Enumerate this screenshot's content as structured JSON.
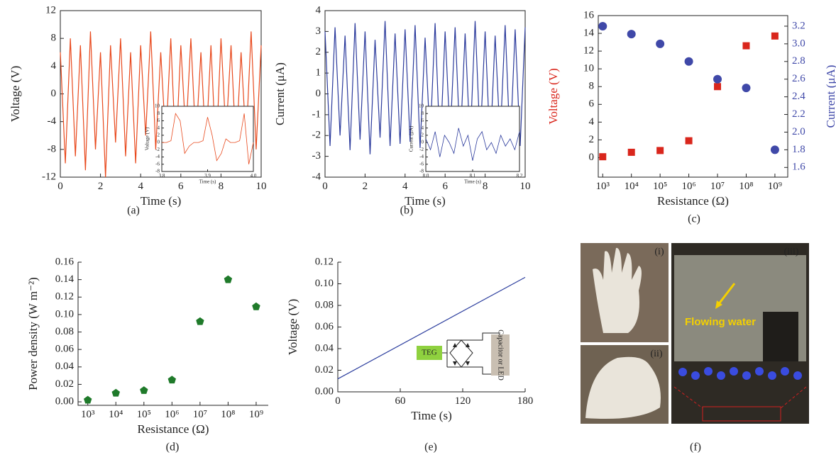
{
  "chart_data": [
    {
      "type": "line",
      "label": "(a)",
      "xlabel": "Time (s)",
      "ylabel": "Voltage (V)",
      "xlim": [
        0,
        10
      ],
      "ylim": [
        -12,
        12
      ],
      "xticks": [
        0,
        2,
        4,
        6,
        8,
        10
      ],
      "yticks": [
        -12,
        -8,
        -4,
        0,
        4,
        8,
        12
      ],
      "x": [
        0,
        0.25,
        0.5,
        0.75,
        1,
        1.25,
        1.5,
        1.75,
        2,
        2.25,
        2.5,
        2.75,
        3,
        3.25,
        3.5,
        3.75,
        4,
        4.25,
        4.5,
        4.75,
        5,
        5.25,
        5.5,
        5.75,
        6,
        6.25,
        6.5,
        6.75,
        7,
        7.25,
        7.5,
        7.75,
        8,
        8.25,
        8.5,
        8.75,
        9,
        9.25,
        9.5,
        9.75,
        10
      ],
      "series": [
        {
          "color": "#e8491d",
          "values": [
            6,
            -10,
            8,
            -9,
            7,
            -11,
            9,
            -8,
            6,
            -12,
            7,
            -7,
            8,
            -9,
            6,
            -10,
            7,
            -6,
            9,
            -8,
            6,
            -7,
            8,
            -9,
            7,
            -6,
            8,
            -7,
            6,
            -8,
            7,
            -9,
            8,
            -6,
            7,
            -8,
            6,
            -7,
            9,
            -8,
            7
          ]
        }
      ],
      "inset": {
        "type": "line",
        "xlabel": "Time (s)",
        "ylabel": "Voltage (V)",
        "xlim": [
          3.8,
          4.0
        ],
        "ylim": [
          -8,
          10
        ],
        "xticks": [
          3.8,
          3.9,
          {
            "value": 4,
            "label": "4.0"
          }
        ],
        "yticks": [
          -8,
          -6,
          -4,
          -2,
          0,
          2,
          4,
          6,
          8,
          10
        ],
        "x": [
          3.8,
          3.81,
          3.82,
          3.83,
          3.84,
          3.85,
          3.86,
          3.87,
          3.88,
          3.89,
          3.9,
          3.91,
          3.92,
          3.93,
          3.94,
          3.95,
          3.96,
          3.97,
          3.98,
          3.99,
          4.0
        ],
        "series": [
          {
            "color": "#e8491d",
            "values": [
              0,
              0,
              0.5,
              8,
              6,
              -3,
              -1,
              0,
              0,
              0.5,
              7,
              2,
              -5,
              -3,
              1,
              0,
              0,
              0.5,
              8,
              -6,
              0
            ]
          }
        ]
      }
    },
    {
      "type": "line",
      "label": "(b)",
      "xlabel": "Time (s)",
      "ylabel": "Current (μA)",
      "xlim": [
        0,
        10
      ],
      "ylim": [
        -4,
        4
      ],
      "xticks": [
        0,
        2,
        4,
        6,
        8,
        10
      ],
      "yticks": [
        -4,
        -3,
        -2,
        -1,
        0,
        1,
        2,
        3,
        4
      ],
      "x": [
        0,
        0.25,
        0.5,
        0.75,
        1,
        1.25,
        1.5,
        1.75,
        2,
        2.25,
        2.5,
        2.75,
        3,
        3.25,
        3.5,
        3.75,
        4,
        4.25,
        4.5,
        4.75,
        5,
        5.25,
        5.5,
        5.75,
        6,
        6.25,
        6.5,
        6.75,
        7,
        7.25,
        7.5,
        7.75,
        8,
        8.25,
        8.5,
        8.75,
        9,
        9.25,
        9.5,
        9.75,
        10
      ],
      "series": [
        {
          "color": "#2b3a9c",
          "values": [
            3,
            -2.5,
            3.2,
            -2,
            2.8,
            -2.7,
            3.4,
            -2.2,
            3,
            -2.9,
            2.6,
            -2.1,
            3.5,
            -2.5,
            2.9,
            -2.4,
            3.1,
            -2.3,
            3.3,
            -2.6,
            2.7,
            -2.2,
            3.4,
            -2.8,
            3,
            -2.1,
            3.2,
            -2.5,
            2.9,
            -2.4,
            3.5,
            -2.3,
            3,
            -2.7,
            2.8,
            -2.2,
            3.3,
            -2.6,
            3.1,
            -2.5,
            3.2
          ]
        }
      ],
      "inset": {
        "type": "line",
        "xlabel": "Time (s)",
        "ylabel": "Current (μA)",
        "xlim": [
          8.0,
          8.2
        ],
        "ylim": [
          -8,
          10
        ],
        "xticks": [
          {
            "value": 8,
            "label": "8.0"
          },
          8.1,
          8.2
        ],
        "yticks": [
          -8,
          -6,
          -4,
          -2,
          0,
          2,
          4,
          6,
          8,
          10
        ],
        "x": [
          8,
          8.01,
          8.02,
          8.03,
          8.04,
          8.05,
          8.06,
          8.07,
          8.08,
          8.09,
          8.1,
          8.11,
          8.12,
          8.13,
          8.14,
          8.15,
          8.16,
          8.17,
          8.18,
          8.19,
          8.2
        ],
        "series": [
          {
            "color": "#2b3a9c",
            "values": [
              1,
              -2,
              3,
              -4,
              2,
              0,
              -3,
              4,
              -1,
              2,
              -5,
              1,
              3,
              -2,
              0,
              -3,
              2,
              -1,
              1,
              -2,
              3
            ]
          }
        ]
      }
    },
    {
      "type": "scatter",
      "label": "(c)",
      "xlabel": "Resistance (Ω)",
      "ylabel": "Voltage (V)",
      "y2label": "Current (μA)",
      "log_x": true,
      "xlim": [
        700,
        2800000000
      ],
      "ylim": [
        -2.2,
        16
      ],
      "y2lim": [
        1.49,
        3.32
      ],
      "xticks": [
        {
          "value": 1000,
          "label": "10³"
        },
        {
          "value": 10000,
          "label": "10⁴"
        },
        {
          "value": 100000,
          "label": "10⁵"
        },
        {
          "value": 1000000,
          "label": "10⁶"
        },
        {
          "value": 10000000,
          "label": "10⁷"
        },
        {
          "value": 100000000,
          "label": "10⁸"
        },
        {
          "value": 1000000000,
          "label": "10⁹"
        }
      ],
      "yticks": [
        0,
        2,
        4,
        6,
        8,
        10,
        12,
        14,
        16
      ],
      "y2ticks": [
        1.6,
        1.8,
        {
          "value": 2,
          "label": "2.0"
        },
        2.2,
        2.4,
        2.6,
        2.8,
        {
          "value": 3,
          "label": "3.0"
        },
        3.2
      ],
      "x": [
        1000,
        10000,
        100000,
        1000000,
        10000000,
        100000000,
        1000000000
      ],
      "series": [
        {
          "color": "#d9261c",
          "marker": "square",
          "values": [
            0.1,
            0.6,
            0.8,
            1.9,
            8,
            12.6,
            13.7
          ]
        },
        {
          "color": "#3f48a8",
          "marker": "circle",
          "axis": "y2",
          "values": [
            3.2,
            3.11,
            3.0,
            2.8,
            2.6,
            2.5,
            1.8
          ]
        }
      ]
    },
    {
      "type": "scatter",
      "label": "(d)",
      "xlabel": "Resistance (Ω)",
      "ylabel": "Power density (W m⁻²)",
      "log_x": true,
      "xlim": [
        450,
        2700000000
      ],
      "ylim": [
        -0.004,
        0.16
      ],
      "xticks": [
        {
          "value": 1000,
          "label": "10³"
        },
        {
          "value": 10000,
          "label": "10⁴"
        },
        {
          "value": 100000,
          "label": "10⁵"
        },
        {
          "value": 1000000,
          "label": "10⁶"
        },
        {
          "value": 10000000,
          "label": "10⁷"
        },
        {
          "value": 100000000,
          "label": "10⁸"
        },
        {
          "value": 1000000000,
          "label": "10⁹"
        }
      ],
      "yticks": [
        {
          "value": 0,
          "label": "0.00"
        },
        0.02,
        0.04,
        0.06,
        0.08,
        {
          "value": 0.1,
          "label": "0.10"
        },
        0.12,
        0.14,
        0.16
      ],
      "x": [
        1000,
        10000,
        100000,
        1000000,
        10000000,
        100000000,
        1000000000
      ],
      "series": [
        {
          "color": "#1f7a2a",
          "marker": "pentagon",
          "values": [
            0.002,
            0.01,
            0.013,
            0.025,
            0.092,
            0.14,
            0.109
          ]
        }
      ]
    },
    {
      "type": "line",
      "label": "(e)",
      "xlabel": "Time (s)",
      "ylabel": "Voltage (V)",
      "xlim": [
        0,
        180
      ],
      "ylim": [
        0,
        0.12
      ],
      "xticks": [
        0,
        60,
        120,
        180
      ],
      "yticks": [
        {
          "value": 0,
          "label": "0.00"
        },
        0.02,
        0.04,
        0.06,
        0.08,
        {
          "value": 0.1,
          "label": "0.10"
        },
        0.12
      ],
      "x": [
        0,
        180
      ],
      "series": [
        {
          "color": "#2c3e9e",
          "values": [
            0.012,
            0.106
          ]
        }
      ],
      "annotations": [
        "TEG",
        "Capacitor or LED"
      ]
    }
  ],
  "photo_panel": {
    "label": "(f)",
    "captions": [
      "(i)",
      "(ii)",
      "(iii)"
    ],
    "annotation": "Flowing water"
  }
}
